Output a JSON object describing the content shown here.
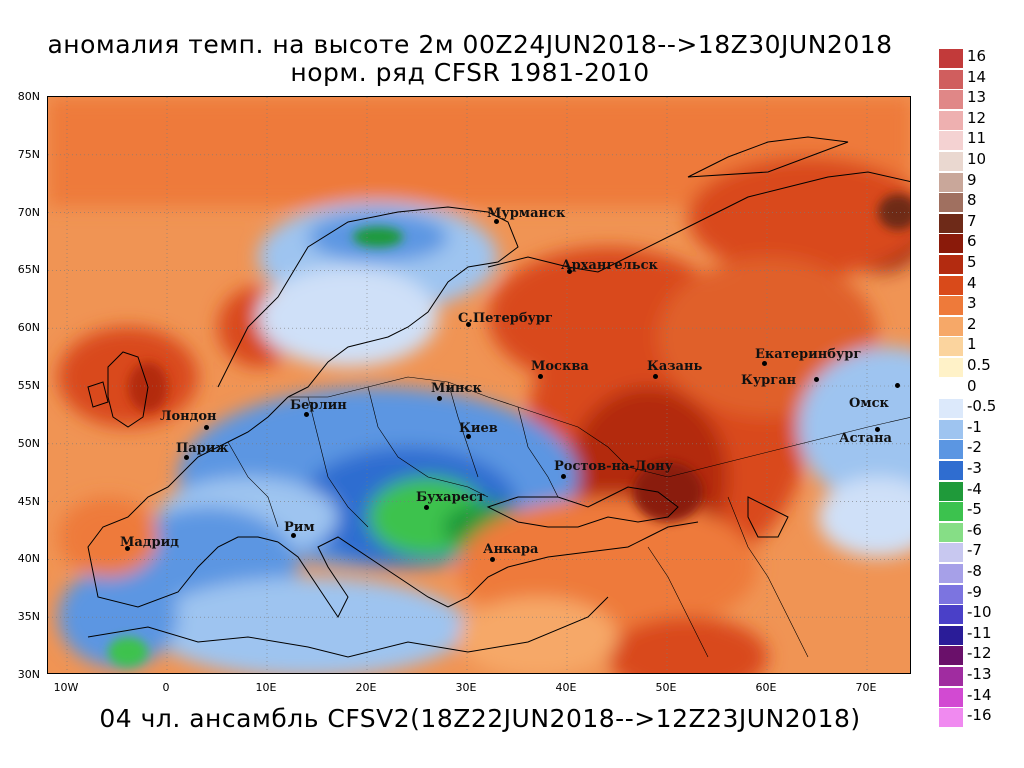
{
  "title_line1": "аномалия темп. на высоте 2м 00Z24JUN2018-->18Z30JUN2018",
  "title_line2": "норм. ряд CFSR 1981-2010",
  "bottom_title": "04 чл. ансамбль CFSV2(18Z22JUN2018-->12Z23JUN2018)",
  "lat_labels": [
    "80N",
    "75N",
    "70N",
    "65N",
    "60N",
    "55N",
    "50N",
    "45N",
    "40N",
    "35N",
    "30N"
  ],
  "lon_labels": [
    "10W",
    "0",
    "10E",
    "20E",
    "30E",
    "40E",
    "50E",
    "60E",
    "70E"
  ],
  "cities": [
    {
      "name": "Мурманск"
    },
    {
      "name": "Архангельск"
    },
    {
      "name": "С.Петербург"
    },
    {
      "name": "Москва"
    },
    {
      "name": "Казань"
    },
    {
      "name": "Екатеринбург"
    },
    {
      "name": "Курган"
    },
    {
      "name": "Омск"
    },
    {
      "name": "Астана"
    },
    {
      "name": "Минск"
    },
    {
      "name": "Киев"
    },
    {
      "name": "Берлин"
    },
    {
      "name": "Лондон"
    },
    {
      "name": "Париж"
    },
    {
      "name": "Ростов-на-Дону"
    },
    {
      "name": "Бухарест"
    },
    {
      "name": "Рим"
    },
    {
      "name": "Мадрид"
    },
    {
      "name": "Анкара"
    }
  ],
  "colorbar": {
    "levels": [
      "16",
      "14",
      "13",
      "12",
      "11",
      "10",
      "9",
      "8",
      "7",
      "6",
      "5",
      "4",
      "3",
      "2",
      "1",
      "0.5",
      "0",
      "-0.5",
      "-1",
      "-2",
      "-3",
      "-4",
      "-5",
      "-6",
      "-7",
      "-8",
      "-9",
      "-10",
      "-11",
      "-12",
      "-13",
      "-14",
      "-16"
    ],
    "colors": [
      "#c23a3a",
      "#d05e5e",
      "#e08787",
      "#eeb0b0",
      "#f4d2d2",
      "#ead8d0",
      "#c9a79a",
      "#a07060",
      "#6e2a18",
      "#8a1a0a",
      "#b32b10",
      "#d94a1a",
      "#ee7a3a",
      "#f6a868",
      "#fbd49e",
      "#fff2c8",
      "#ffffff",
      "#dce9fb",
      "#9ec4f0",
      "#5b96e2",
      "#2f6dd0",
      "#1f9a3a",
      "#3cc24e",
      "#86de86",
      "#c8c8f0",
      "#a6a0e8",
      "#7c74e0",
      "#4a40c8",
      "#2a1c98",
      "#6a106a",
      "#a02ca0",
      "#d24ad2",
      "#f08af0"
    ]
  }
}
